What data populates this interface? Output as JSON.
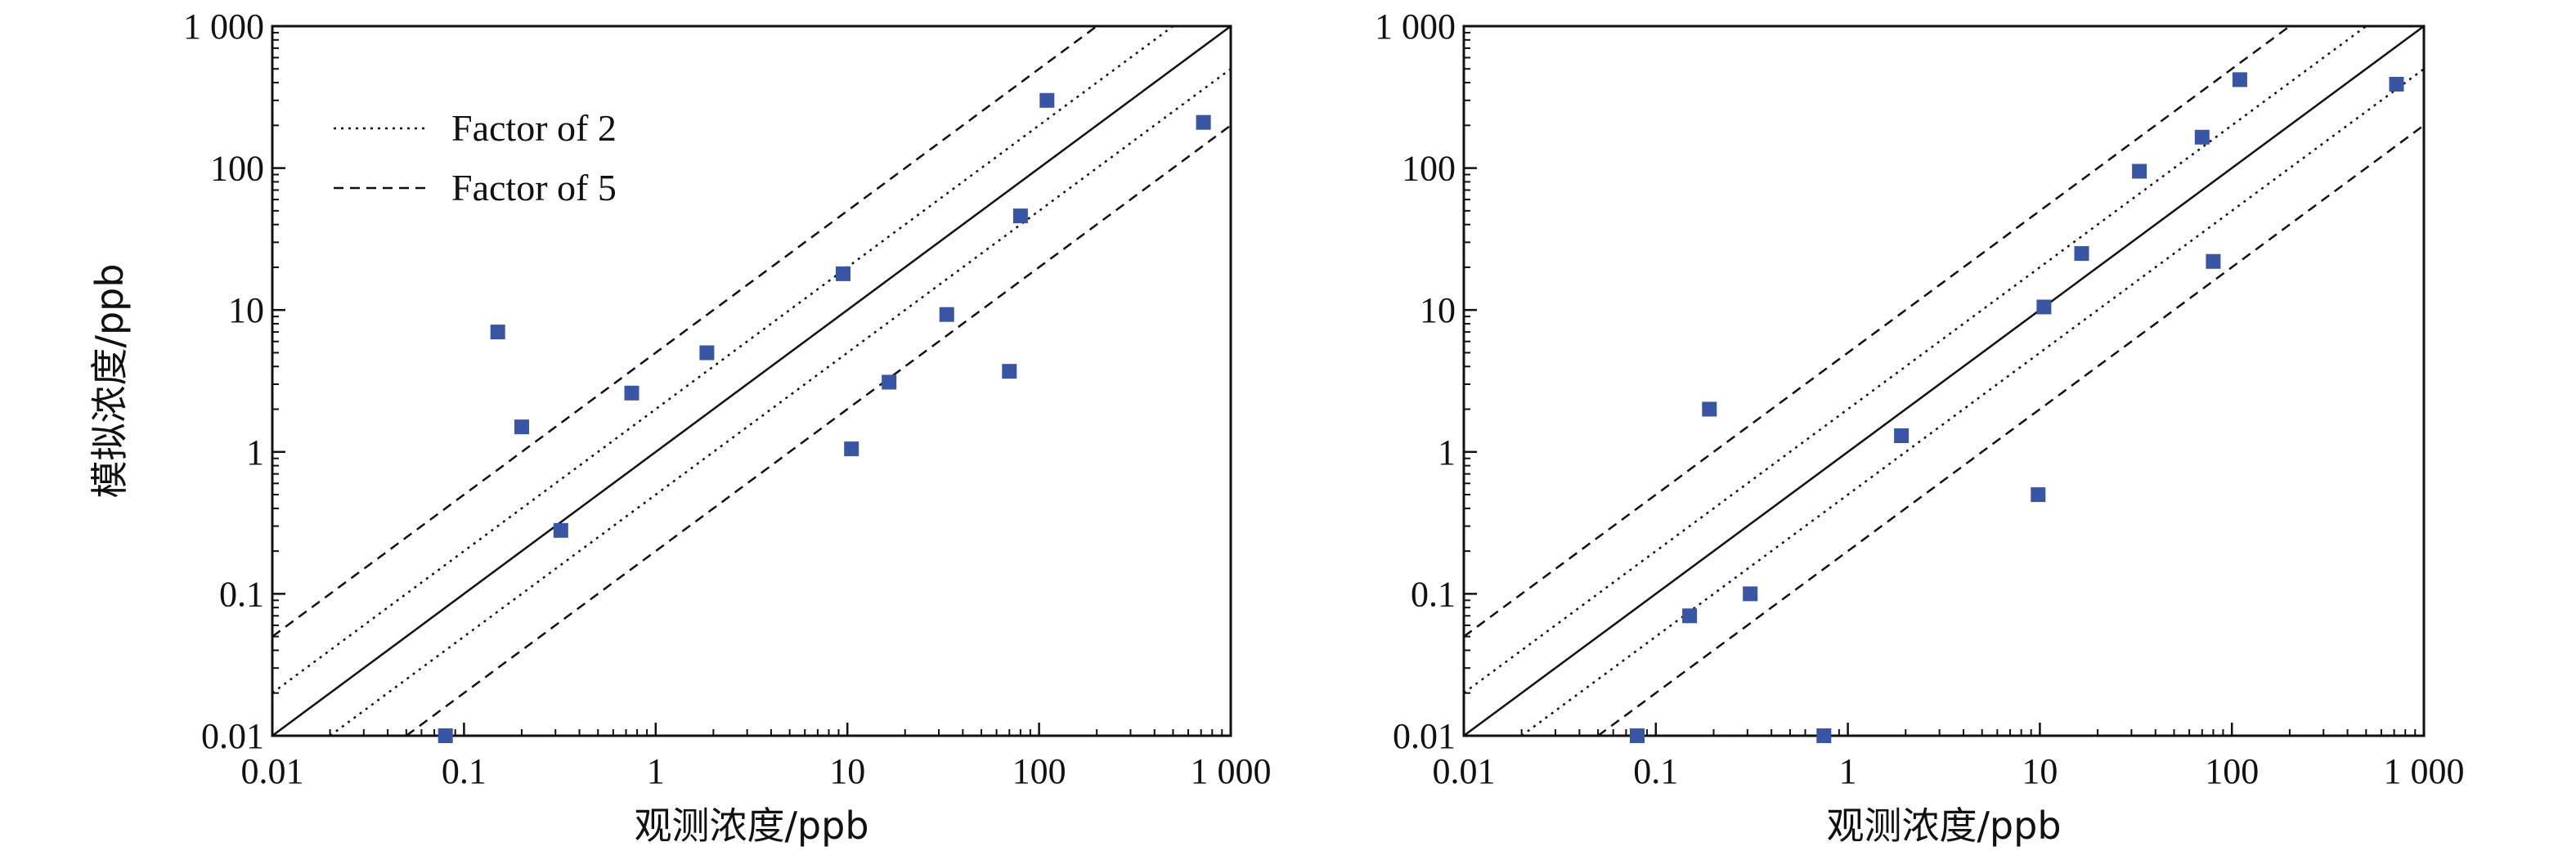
{
  "chart_data": [
    {
      "type": "scatter",
      "x_scale": "log",
      "y_scale": "log",
      "xlim": [
        0.01,
        1000
      ],
      "ylim": [
        0.01,
        1000
      ],
      "xlabel": "观测浓度/ppb",
      "ylabel": "模拟浓度/ppb",
      "x_ticks": [
        "0.01",
        "0.1",
        "1",
        "10",
        "100",
        "1 000"
      ],
      "y_ticks": [
        "0.01",
        "0.1",
        "1",
        "10",
        "100",
        "1 000"
      ],
      "tick_values": [
        0.01,
        0.1,
        1,
        10,
        100,
        1000
      ],
      "legend": {
        "position": "top-left",
        "entries": [
          {
            "label": "Factor of 2",
            "style": "dotted"
          },
          {
            "label": "Factor of 5",
            "style": "dashed"
          }
        ]
      },
      "reference_lines": [
        {
          "factor": 1,
          "style": "solid"
        },
        {
          "factor": 2,
          "style": "dotted"
        },
        {
          "factor": 0.5,
          "style": "dotted"
        },
        {
          "factor": 5,
          "style": "dashed"
        },
        {
          "factor": 0.2,
          "style": "dashed"
        }
      ],
      "marker_color": "#3a55a4",
      "points": [
        {
          "x": 0.15,
          "y": 7
        },
        {
          "x": 0.2,
          "y": 1.5
        },
        {
          "x": 0.32,
          "y": 0.28
        },
        {
          "x": 0.75,
          "y": 2.6
        },
        {
          "x": 1.85,
          "y": 5
        },
        {
          "x": 9.5,
          "y": 18
        },
        {
          "x": 10.5,
          "y": 1.05
        },
        {
          "x": 16.5,
          "y": 3.1
        },
        {
          "x": 33,
          "y": 9.3
        },
        {
          "x": 70,
          "y": 3.7
        },
        {
          "x": 80,
          "y": 46
        },
        {
          "x": 110,
          "y": 300
        },
        {
          "x": 720,
          "y": 210
        },
        {
          "x": 0.08,
          "y": 0.01
        }
      ]
    },
    {
      "type": "scatter",
      "x_scale": "log",
      "y_scale": "log",
      "xlim": [
        0.01,
        1000
      ],
      "ylim": [
        0.01,
        1000
      ],
      "xlabel": "观测浓度/ppb",
      "ylabel": "",
      "x_ticks": [
        "0.01",
        "0.1",
        "1",
        "10",
        "100",
        "1 000"
      ],
      "y_ticks": [
        "0.01",
        "0.1",
        "1",
        "10",
        "100",
        "1 000"
      ],
      "tick_values": [
        0.01,
        0.1,
        1,
        10,
        100,
        1000
      ],
      "reference_lines": [
        {
          "factor": 1,
          "style": "solid"
        },
        {
          "factor": 2,
          "style": "dotted"
        },
        {
          "factor": 0.5,
          "style": "dotted"
        },
        {
          "factor": 5,
          "style": "dashed"
        },
        {
          "factor": 0.2,
          "style": "dashed"
        }
      ],
      "marker_color": "#3a55a4",
      "points": [
        {
          "x": 0.15,
          "y": 0.07
        },
        {
          "x": 0.19,
          "y": 2
        },
        {
          "x": 0.31,
          "y": 0.1
        },
        {
          "x": 0.08,
          "y": 0.01
        },
        {
          "x": 0.75,
          "y": 0.01
        },
        {
          "x": 1.9,
          "y": 1.3
        },
        {
          "x": 9.8,
          "y": 0.5
        },
        {
          "x": 10.5,
          "y": 10.5
        },
        {
          "x": 16.5,
          "y": 25
        },
        {
          "x": 33,
          "y": 95
        },
        {
          "x": 70,
          "y": 165
        },
        {
          "x": 80,
          "y": 22
        },
        {
          "x": 110,
          "y": 420
        },
        {
          "x": 720,
          "y": 390
        }
      ]
    }
  ]
}
